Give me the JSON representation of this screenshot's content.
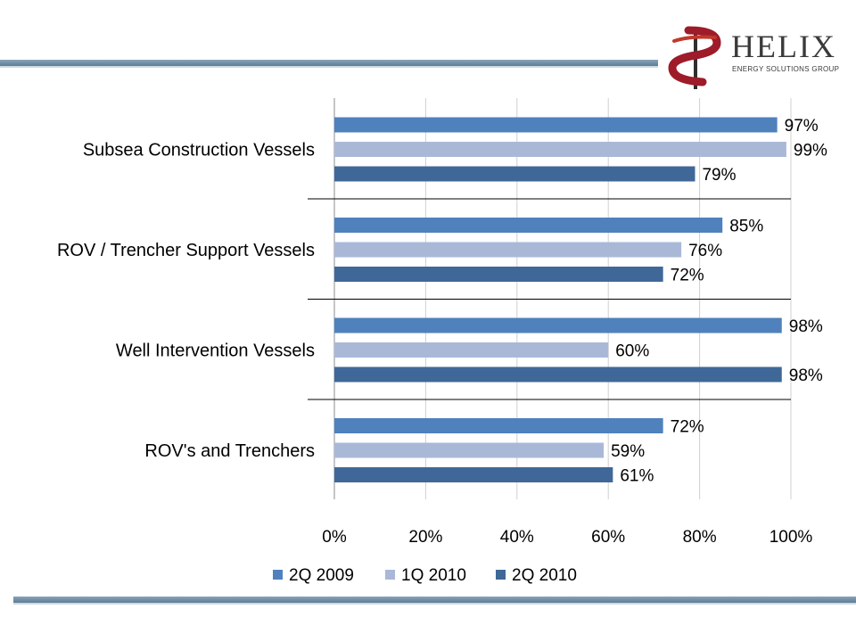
{
  "logo": {
    "name": "HELIX",
    "subtitle": "ENERGY SOLUTIONS GROUP",
    "colors": {
      "accent": "#9e1b2a",
      "text": "#3a3a3a"
    }
  },
  "colors": {
    "rule": "#5d7c97"
  },
  "chart_data": {
    "type": "bar",
    "orientation": "horizontal",
    "categories": [
      "Subsea Construction Vessels",
      "ROV / Trencher Support Vessels",
      "Well Intervention Vessels",
      "ROV's and Trenchers"
    ],
    "series": [
      {
        "name": "2Q 2009",
        "color": "#4f81bd",
        "values": [
          97,
          85,
          98,
          72
        ],
        "labels": [
          "97%",
          "85%",
          "98%",
          "72%"
        ]
      },
      {
        "name": "1Q 2010",
        "color": "#aab8d8",
        "values": [
          99,
          76,
          60,
          59
        ],
        "labels": [
          "99%",
          "76%",
          "60%",
          "59%"
        ]
      },
      {
        "name": "2Q 2010",
        "color": "#3f6898",
        "values": [
          79,
          72,
          98,
          61
        ],
        "labels": [
          "79%",
          "72%",
          "98%",
          "61%"
        ]
      }
    ],
    "xlim": [
      0,
      100
    ],
    "xticks": [
      0,
      20,
      40,
      60,
      80,
      100
    ],
    "xtick_labels": [
      "0%",
      "20%",
      "40%",
      "60%",
      "80%",
      "100%"
    ],
    "grid": true,
    "legend_position": "bottom"
  }
}
